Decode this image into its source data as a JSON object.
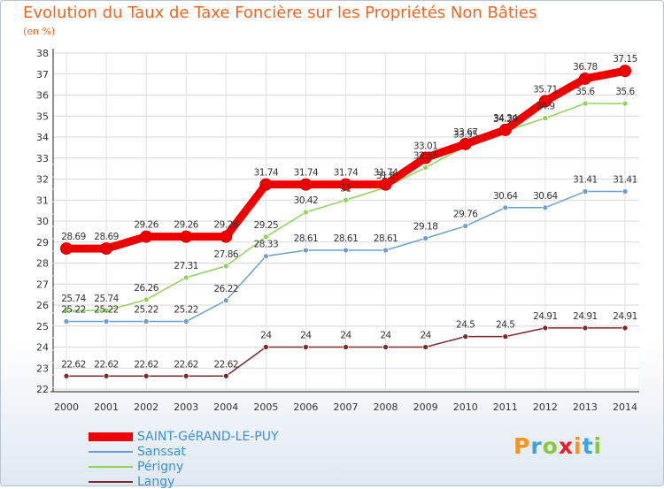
{
  "chart_data": {
    "type": "line",
    "title": "Evolution du Taux de Taxe Foncière sur les Propriétés Non Bâties",
    "subtitle": "(en %)",
    "x": [
      "2000",
      "2001",
      "2002",
      "2003",
      "2004",
      "2005",
      "2006",
      "2007",
      "2008",
      "2009",
      "2010",
      "2011",
      "2012",
      "2013",
      "2014"
    ],
    "ylim": [
      22,
      38
    ],
    "yticks": [
      22,
      23,
      24,
      25,
      26,
      27,
      28,
      29,
      30,
      31,
      32,
      33,
      34,
      35,
      36,
      37,
      38
    ],
    "grid": true,
    "legend_position": "bottom-left",
    "series": [
      {
        "name": "SAINT-GéRAND-LE-PUY",
        "color": "#ee0000",
        "values": [
          28.69,
          28.69,
          29.26,
          29.26,
          29.26,
          31.74,
          31.74,
          31.74,
          31.74,
          33.01,
          33.67,
          34.34,
          35.71,
          36.78,
          37.15
        ]
      },
      {
        "name": "Sanssat",
        "color": "#6a9fd0",
        "values": [
          25.22,
          25.22,
          25.22,
          25.22,
          26.22,
          28.33,
          28.61,
          28.61,
          28.61,
          29.18,
          29.76,
          30.64,
          30.64,
          31.41,
          31.41
        ]
      },
      {
        "name": "Périgny",
        "color": "#90d35a",
        "values": [
          25.74,
          25.74,
          26.26,
          27.31,
          27.86,
          29.25,
          30.42,
          31,
          31.6,
          32.55,
          33.55,
          34.29,
          34.9,
          35.6,
          35.6
        ]
      },
      {
        "name": "Langy",
        "color": "#7a2a2a",
        "values": [
          22.62,
          22.62,
          22.62,
          22.62,
          22.62,
          24,
          24,
          24,
          24,
          24,
          24.5,
          24.5,
          24.91,
          24.91,
          24.91
        ]
      }
    ],
    "point_labels": [
      [
        "28.69",
        "28.69",
        "29.26",
        "29.26",
        "29.26",
        "31.74",
        "31.74",
        "31.74",
        "31.74",
        "33.01",
        "33.67",
        "34.34",
        "35.71",
        "36.78",
        "37.15"
      ],
      [
        "25.22",
        "25.22",
        "25.22",
        "25.22",
        "26.22",
        "28.33",
        "28.61",
        "28.61",
        "28.61",
        "29.18",
        "29.76",
        "30.64",
        "30.64",
        "31.41",
        "31.41"
      ],
      [
        "25.74",
        "25.74",
        "26.26",
        "27.31",
        "27.86",
        "29.25",
        "30.42",
        "31",
        "31.6",
        "32.55",
        "33.55",
        "34.29",
        "34.9",
        "35.6",
        "35.6"
      ],
      [
        "22.62",
        "22.62",
        "22.62",
        "22.62",
        "22.62",
        "24",
        "24",
        "24",
        "24",
        "24",
        "24.5",
        "24.5",
        "24.91",
        "24.91",
        "24.91"
      ]
    ]
  },
  "logo": {
    "letters": [
      "P",
      "r",
      "o",
      "x",
      "i",
      "t",
      "i"
    ],
    "colors": [
      "#f7941d",
      "#3aa5dc",
      "#8dc63f",
      "#ed1c24",
      "#f7941d",
      "#3aa5dc",
      "#8dc63f"
    ]
  }
}
